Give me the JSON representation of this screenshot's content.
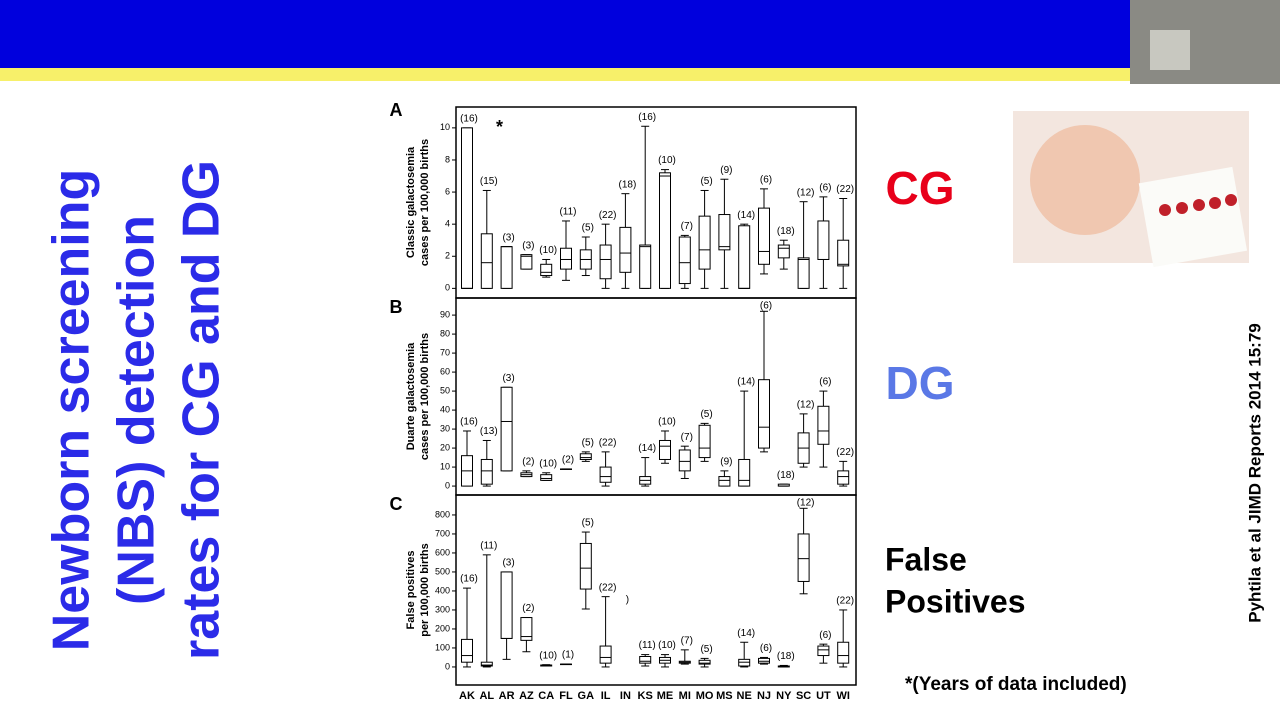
{
  "slide": {
    "title_lines": [
      "Newborn screening",
      "(NBS) detection",
      "rates for CG and DG"
    ],
    "cg_label": "CG",
    "dg_label": "DG",
    "fp_label_lines": [
      "False",
      "Positives"
    ],
    "footnote": "*(Years of data included)",
    "citation": "Pyhtila et al JIMD Reports 2014 15:79"
  },
  "chart_data": [
    {
      "type": "box",
      "panel": "A",
      "annotation": "*",
      "y_label_lines": [
        "Classic galactosemia",
        "cases per 100,000 births"
      ],
      "ylim": [
        -0.6,
        11.3
      ],
      "yticks": [
        0,
        2,
        4,
        6,
        8,
        10
      ],
      "boxes": [
        [
          0,
          0,
          0,
          10,
          10
        ],
        [
          0,
          0,
          1.6,
          3.4,
          6.1
        ],
        [
          0,
          0,
          2.6,
          2.6,
          2.6
        ],
        [
          1.2,
          1.2,
          2,
          2.1,
          2.1
        ],
        [
          0.7,
          0.8,
          1.0,
          1.5,
          1.8
        ],
        [
          0.5,
          1.2,
          1.8,
          2.5,
          4.2
        ],
        [
          0.8,
          1.2,
          1.8,
          2.4,
          3.2
        ],
        [
          0,
          0.6,
          1.8,
          2.7,
          4.0
        ],
        [
          0,
          1,
          2.2,
          3.8,
          5.9
        ],
        [
          0,
          0,
          2.6,
          2.7,
          10.1
        ],
        [
          0,
          0,
          7,
          7.2,
          7.4
        ],
        [
          0,
          0.3,
          1.6,
          3.2,
          3.3
        ],
        [
          0,
          1.2,
          2.4,
          4.5,
          6.1
        ],
        [
          0,
          2.4,
          2.6,
          4.6,
          6.8
        ],
        [
          0,
          0,
          0,
          3.9,
          4.0
        ],
        [
          0.9,
          1.5,
          2.3,
          5,
          6.2
        ],
        [
          1.2,
          1.9,
          2.5,
          2.7,
          3.0
        ],
        [
          0,
          0,
          1.8,
          1.9,
          5.4
        ],
        [
          0,
          1.8,
          1.8,
          4.2,
          5.7
        ],
        [
          0,
          1.4,
          1.5,
          3.0,
          5.6
        ]
      ],
      "n_labels": [
        "(16)",
        "(15)",
        "(3)",
        "(3)",
        "(10)",
        "(11)",
        "(5)",
        "(22)",
        "(18)",
        "(16)",
        "(10)",
        "(7)",
        "(5)",
        "(9)",
        "(14)",
        "(6)",
        "(18)",
        "(12)",
        "(6)",
        "(22)"
      ]
    },
    {
      "type": "box",
      "panel": "B",
      "y_label_lines": [
        "Duarte galactosemia",
        "cases per 100,000 births"
      ],
      "ylim": [
        -4.7,
        99
      ],
      "yticks": [
        0,
        10,
        20,
        30,
        40,
        50,
        60,
        70,
        80,
        90
      ],
      "boxes": [
        [
          0,
          0,
          8,
          16,
          29
        ],
        [
          0,
          1,
          8,
          14,
          24
        ],
        [
          8,
          8,
          34,
          52,
          52
        ],
        [
          5,
          5,
          6,
          7,
          8
        ],
        [
          3,
          3,
          4,
          6,
          7
        ],
        [
          9,
          9,
          9,
          9,
          9
        ],
        [
          13,
          14,
          15,
          17,
          18
        ],
        [
          0,
          2,
          5,
          10,
          18
        ],
        null,
        [
          0,
          1,
          3,
          5,
          15
        ],
        [
          12,
          14,
          21,
          24,
          29
        ],
        [
          4,
          8,
          13,
          19,
          21
        ],
        [
          13,
          15,
          20,
          32,
          33
        ],
        [
          0,
          0,
          3,
          5,
          8
        ],
        [
          0,
          0,
          3,
          14,
          50
        ],
        [
          18,
          20,
          31,
          56,
          92
        ],
        [
          0,
          0,
          0,
          1,
          1
        ],
        [
          10,
          12,
          20,
          28,
          38
        ],
        [
          10,
          22,
          29,
          42,
          50
        ],
        [
          0,
          1,
          5,
          8,
          13
        ]
      ],
      "n_labels": [
        "(16)",
        "(13)",
        "(3)",
        "(2)",
        "(10)",
        "(2)",
        "(5)",
        "(22)",
        null,
        "(14)",
        "(10)",
        "(7)",
        "(5)",
        "(9)",
        "(14)",
        "(6)",
        "(18)",
        "(12)",
        "(6)",
        "(22)"
      ]
    },
    {
      "type": "box",
      "panel": "C",
      "y_label_lines": [
        "False positives",
        "per 100,000 births"
      ],
      "ylim": [
        -95,
        905
      ],
      "yticks": [
        0,
        100,
        200,
        300,
        400,
        500,
        600,
        700,
        800
      ],
      "categories": [
        "AK",
        "AL",
        "AR",
        "AZ",
        "CA",
        "FL",
        "GA",
        "IL",
        "IN",
        "KS",
        "ME",
        "MI",
        "MO",
        "MS",
        "NE",
        "NJ",
        "NY",
        "SC",
        "UT",
        "WI"
      ],
      "boxes": [
        [
          0,
          25,
          60,
          145,
          415
        ],
        [
          0,
          5,
          10,
          25,
          590
        ],
        [
          40,
          150,
          150,
          500,
          500
        ],
        [
          80,
          140,
          160,
          260,
          260
        ],
        [
          5,
          5,
          10,
          10,
          12
        ],
        [
          15,
          15,
          15,
          15,
          15
        ],
        [
          305,
          410,
          520,
          650,
          710
        ],
        [
          0,
          20,
          50,
          110,
          370
        ],
        null,
        [
          5,
          20,
          30,
          55,
          65
        ],
        [
          0,
          20,
          35,
          50,
          65
        ],
        [
          15,
          20,
          25,
          30,
          90
        ],
        [
          0,
          15,
          20,
          35,
          45
        ],
        null,
        [
          0,
          5,
          25,
          40,
          130
        ],
        [
          15,
          20,
          30,
          45,
          50
        ],
        [
          0,
          0,
          2,
          5,
          8
        ],
        [
          385,
          450,
          570,
          700,
          835
        ],
        [
          20,
          60,
          90,
          110,
          120
        ],
        [
          0,
          20,
          60,
          130,
          300
        ]
      ],
      "n_labels": [
        "(16)",
        "(11)",
        "(3)",
        "(2)",
        "(10)",
        "(1)",
        "(5)",
        "(22)",
        ")",
        "(11)",
        "(10)",
        "(7)",
        "(5)",
        null,
        "(14)",
        "(6)",
        "(18)",
        "(12)",
        "(6)",
        "(22)"
      ]
    }
  ]
}
